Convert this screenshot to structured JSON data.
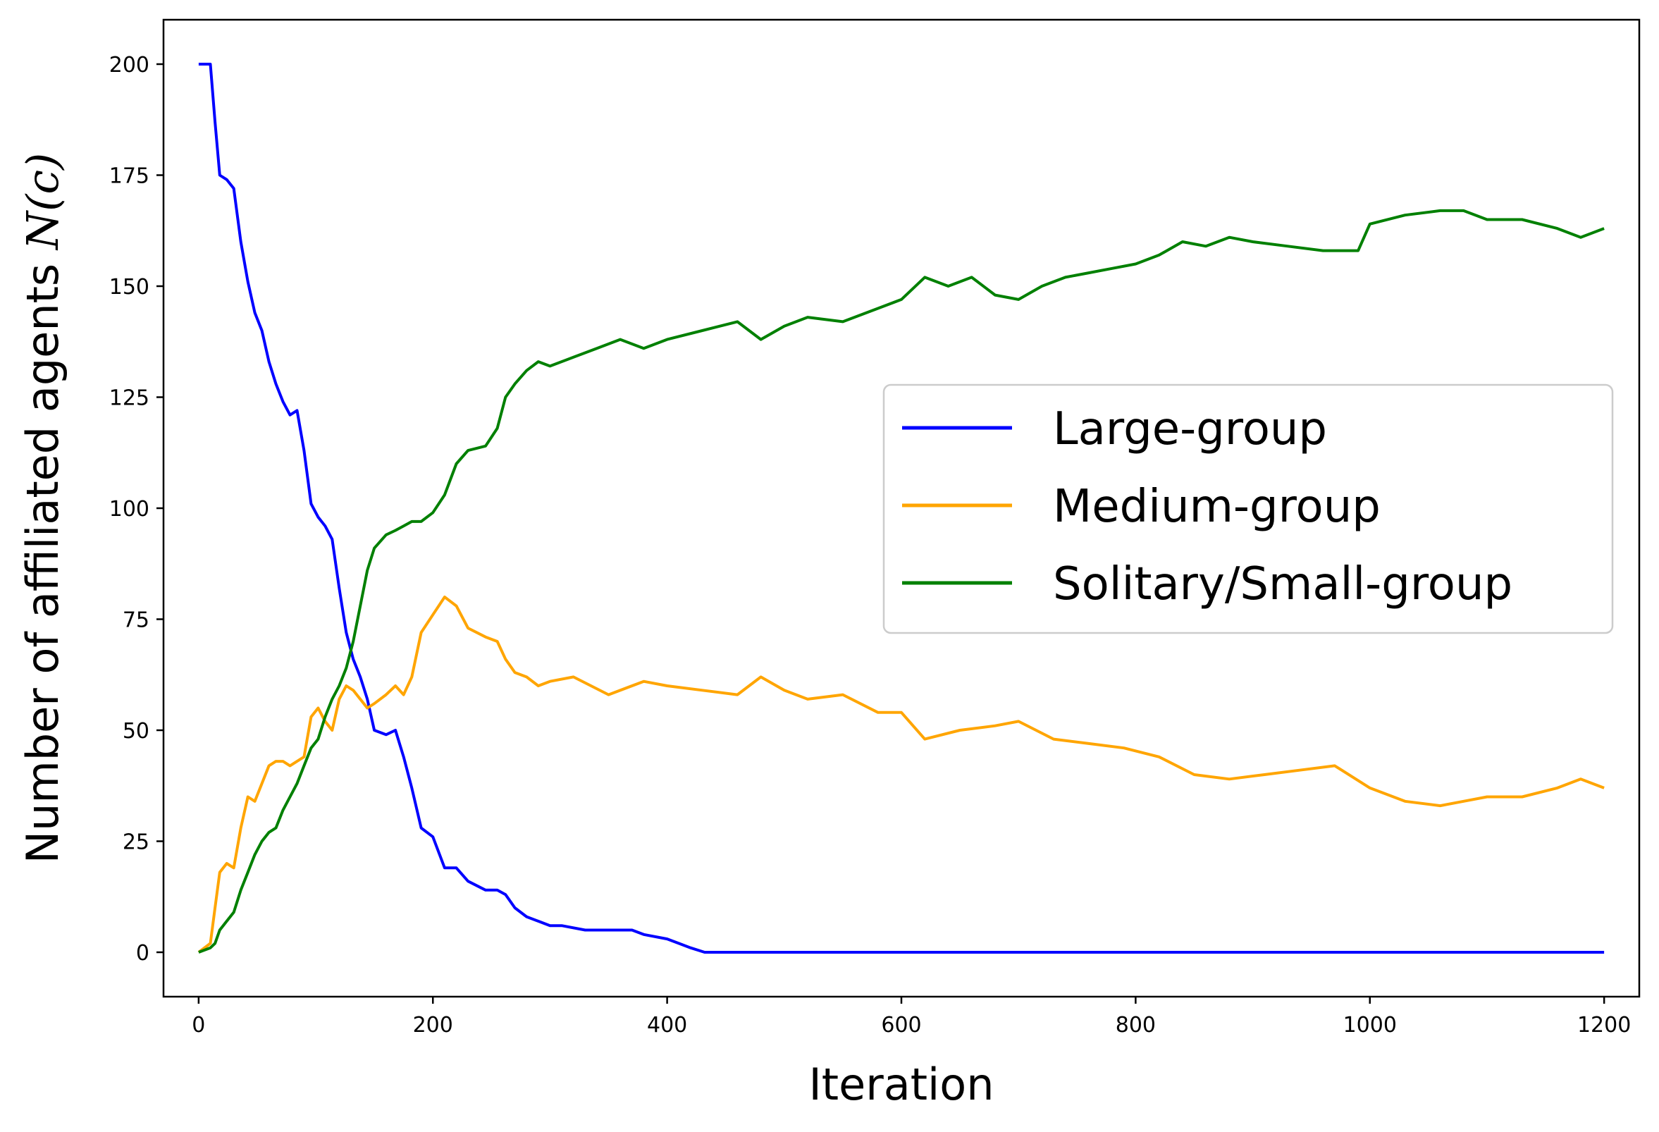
{
  "chart_data": {
    "type": "line",
    "xlabel": "Iteration",
    "ylabel": "Number of affiliated agents ",
    "ylabel_math": "N(c)",
    "xlim": [
      -30,
      1230
    ],
    "ylim": [
      -10,
      210
    ],
    "x_ticks": [
      0,
      200,
      400,
      600,
      800,
      1000,
      1200
    ],
    "y_ticks": [
      0,
      25,
      50,
      75,
      100,
      125,
      150,
      175,
      200
    ],
    "grid": false,
    "legend_position": "center-right",
    "series": [
      {
        "name": "Large-group",
        "color": "#0000ff",
        "x": [
          0,
          10,
          14,
          18,
          24,
          30,
          36,
          42,
          48,
          54,
          60,
          66,
          72,
          78,
          84,
          90,
          96,
          102,
          108,
          114,
          120,
          126,
          132,
          138,
          144,
          150,
          160,
          168,
          175,
          182,
          190,
          200,
          210,
          220,
          230,
          245,
          255,
          262,
          270,
          280,
          290,
          300,
          310,
          330,
          350,
          370,
          380,
          400,
          410,
          420,
          432,
          450,
          600,
          800,
          1000,
          1200
        ],
        "y": [
          200,
          200,
          187,
          175,
          174,
          172,
          160,
          151,
          144,
          140,
          133,
          128,
          124,
          121,
          122,
          113,
          101,
          98,
          96,
          93,
          82,
          72,
          66,
          62,
          57,
          50,
          49,
          50,
          44,
          37,
          28,
          26,
          19,
          19,
          16,
          14,
          14,
          13,
          10,
          8,
          7,
          6,
          6,
          5,
          5,
          5,
          4,
          3,
          2,
          1,
          0,
          0,
          0,
          0,
          0,
          0
        ]
      },
      {
        "name": "Medium-group",
        "color": "#ffa500",
        "x": [
          0,
          10,
          14,
          18,
          24,
          30,
          36,
          42,
          48,
          54,
          60,
          66,
          72,
          78,
          84,
          90,
          96,
          102,
          108,
          114,
          120,
          126,
          132,
          138,
          144,
          150,
          160,
          168,
          175,
          182,
          190,
          200,
          210,
          220,
          230,
          245,
          255,
          262,
          270,
          280,
          290,
          300,
          320,
          350,
          380,
          400,
          430,
          460,
          480,
          500,
          520,
          550,
          580,
          600,
          620,
          650,
          680,
          700,
          730,
          760,
          790,
          820,
          850,
          880,
          910,
          940,
          970,
          1000,
          1030,
          1060,
          1080,
          1100,
          1130,
          1160,
          1180,
          1200
        ],
        "y": [
          0,
          2,
          10,
          18,
          20,
          19,
          28,
          35,
          34,
          38,
          42,
          43,
          43,
          42,
          43,
          44,
          53,
          55,
          52,
          50,
          57,
          60,
          59,
          57,
          55,
          56,
          58,
          60,
          58,
          62,
          72,
          76,
          80,
          78,
          73,
          71,
          70,
          66,
          63,
          62,
          60,
          61,
          62,
          58,
          61,
          60,
          59,
          58,
          62,
          59,
          57,
          58,
          54,
          54,
          48,
          50,
          51,
          52,
          48,
          47,
          46,
          44,
          40,
          39,
          40,
          41,
          42,
          37,
          34,
          33,
          34,
          35,
          35,
          37,
          39,
          37
        ]
      },
      {
        "name": "Solitary/Small-group",
        "color": "#008000",
        "x": [
          0,
          10,
          14,
          18,
          24,
          30,
          36,
          42,
          48,
          54,
          60,
          66,
          72,
          78,
          84,
          90,
          96,
          102,
          108,
          114,
          120,
          126,
          132,
          138,
          144,
          150,
          160,
          168,
          175,
          182,
          190,
          200,
          210,
          220,
          230,
          245,
          255,
          262,
          270,
          280,
          290,
          300,
          320,
          340,
          360,
          380,
          400,
          430,
          460,
          480,
          500,
          520,
          550,
          580,
          600,
          620,
          640,
          660,
          680,
          700,
          720,
          740,
          760,
          780,
          800,
          820,
          840,
          860,
          880,
          900,
          930,
          960,
          990,
          1000,
          1030,
          1060,
          1080,
          1100,
          1130,
          1160,
          1180,
          1200
        ],
        "y": [
          0,
          1,
          2,
          5,
          7,
          9,
          14,
          18,
          22,
          25,
          27,
          28,
          32,
          35,
          38,
          42,
          46,
          48,
          53,
          57,
          60,
          64,
          70,
          78,
          86,
          91,
          94,
          95,
          96,
          97,
          97,
          99,
          103,
          110,
          113,
          114,
          118,
          125,
          128,
          131,
          133,
          132,
          134,
          136,
          138,
          136,
          138,
          140,
          142,
          138,
          141,
          143,
          142,
          145,
          147,
          152,
          150,
          152,
          148,
          147,
          150,
          152,
          153,
          154,
          155,
          157,
          160,
          159,
          161,
          160,
          159,
          158,
          158,
          164,
          166,
          167,
          167,
          165,
          165,
          163,
          161,
          163
        ]
      }
    ]
  }
}
